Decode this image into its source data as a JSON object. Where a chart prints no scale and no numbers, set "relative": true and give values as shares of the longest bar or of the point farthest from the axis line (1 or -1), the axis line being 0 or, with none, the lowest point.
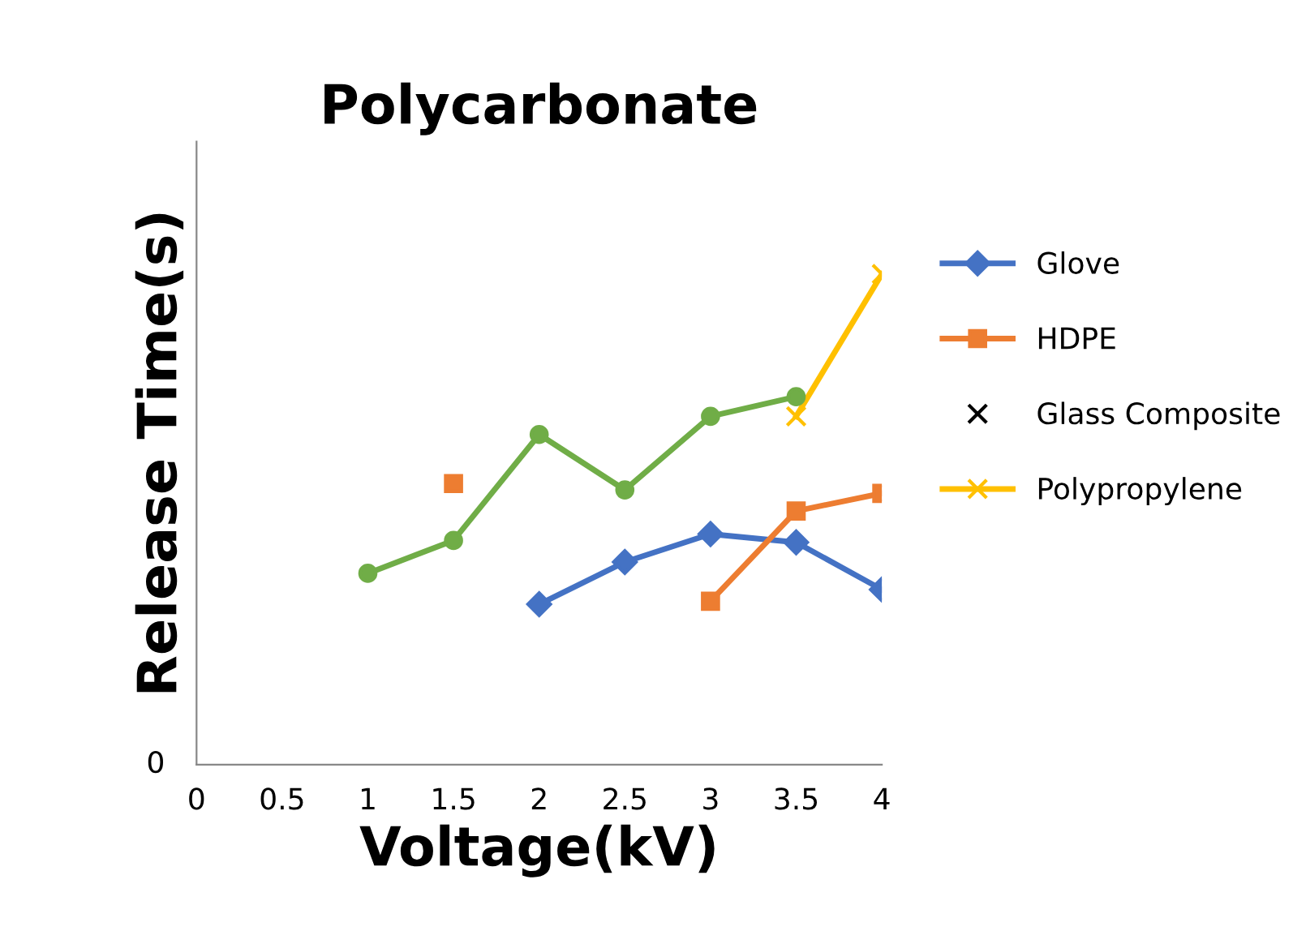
{
  "chart_data": {
    "type": "line",
    "title": "Polycarbonate",
    "xlabel": "Voltage(kV)",
    "ylabel": "Release Time(s)",
    "relative": true,
    "annotations": [
      "0"
    ],
    "xlim": [
      0,
      4
    ],
    "xticks": [
      0,
      0.5,
      1,
      1.5,
      2,
      2.5,
      3,
      3.5,
      4
    ],
    "grid": false,
    "legend": "right",
    "series": [
      {
        "name": "Glove",
        "color": "#4472c4",
        "marker": "diamond",
        "x": [
          2,
          2.5,
          3,
          3.5,
          4
        ],
        "values": [
          0.327,
          0.413,
          0.47,
          0.453,
          0.357
        ]
      },
      {
        "name": "HDPE",
        "color": "#ed7d31",
        "marker": "square",
        "x": [
          1.5,
          2,
          2.5,
          3,
          3.5,
          4
        ],
        "values": [
          0.573,
          null,
          null,
          0.333,
          0.517,
          0.553
        ]
      },
      {
        "name": "Glass Composite",
        "color": "#000000",
        "marker": "cross",
        "type": "scatter"
      },
      {
        "name": "Polypropylene",
        "color": "#ffc000",
        "marker": "cross",
        "x": [
          3.5,
          4
        ],
        "values": [
          0.71,
          1
        ]
      },
      {
        "color": "#70ad47",
        "marker": "circle",
        "x": [
          1,
          1.5,
          2,
          2.5,
          3,
          3.5
        ],
        "values": [
          0.39,
          0.457,
          0.673,
          0.56,
          0.71,
          0.75
        ]
      }
    ]
  }
}
